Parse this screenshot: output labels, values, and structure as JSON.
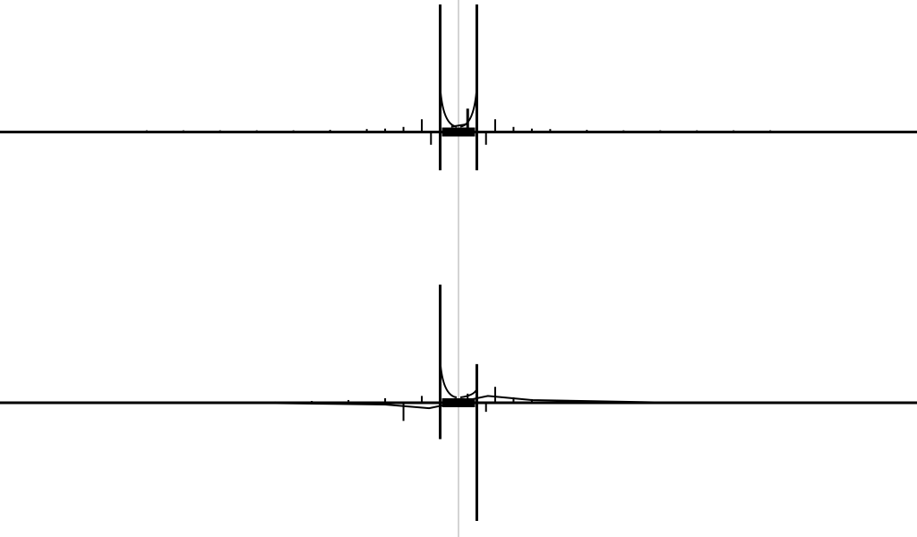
{
  "colors": {
    "background": "#ffffff",
    "trace": "#000000",
    "center_line": "#a8a8a8"
  },
  "chart_data": [
    {
      "type": "line",
      "title": "",
      "xlabel": "",
      "ylabel": "",
      "grid": false,
      "legend": "none",
      "xlim": [
        -12.5,
        12.5
      ],
      "ylim": [
        -1.0,
        3.0
      ],
      "center_x": 0,
      "baseline": 0,
      "spikes": [
        {
          "x": -8.5,
          "y": 0.04
        },
        {
          "x": -7.5,
          "y": 0.04
        },
        {
          "x": -6.5,
          "y": 0.04
        },
        {
          "x": -5.5,
          "y": 0.04
        },
        {
          "x": -4.5,
          "y": 0.04
        },
        {
          "x": -3.5,
          "y": 0.05
        },
        {
          "x": -2.5,
          "y": 0.07
        },
        {
          "x": -2.0,
          "y": 0.08
        },
        {
          "x": -1.5,
          "y": 0.12
        },
        {
          "x": -1.0,
          "y": 0.3
        },
        {
          "x": -0.75,
          "y": -0.3
        },
        {
          "x": -0.5,
          "y": 3.0
        },
        {
          "x": -0.5,
          "y": -0.9
        },
        {
          "x": 0.25,
          "y": 0.55
        },
        {
          "x": 0.5,
          "y": 3.0
        },
        {
          "x": 0.5,
          "y": -0.9
        },
        {
          "x": 0.75,
          "y": -0.3
        },
        {
          "x": 1.0,
          "y": 0.3
        },
        {
          "x": 1.5,
          "y": 0.12
        },
        {
          "x": 2.0,
          "y": 0.08
        },
        {
          "x": 2.5,
          "y": 0.07
        },
        {
          "x": 3.5,
          "y": 0.05
        },
        {
          "x": 4.5,
          "y": 0.04
        },
        {
          "x": 5.5,
          "y": 0.04
        },
        {
          "x": 6.5,
          "y": 0.04
        },
        {
          "x": 7.5,
          "y": 0.04
        },
        {
          "x": 8.5,
          "y": 0.04
        }
      ]
    },
    {
      "type": "line",
      "title": "",
      "xlabel": "",
      "ylabel": "",
      "grid": false,
      "legend": "none",
      "xlim": [
        -12.5,
        12.5
      ],
      "ylim": [
        -2.6,
        2.6
      ],
      "center_x": 0,
      "baseline": 0,
      "spikes": [
        {
          "x": -6.0,
          "y": 0.02
        },
        {
          "x": -5.0,
          "y": 0.03
        },
        {
          "x": -4.0,
          "y": 0.04
        },
        {
          "x": -3.0,
          "y": 0.06
        },
        {
          "x": -2.0,
          "y": 0.1
        },
        {
          "x": -1.5,
          "y": -0.4
        },
        {
          "x": -1.0,
          "y": 0.15
        },
        {
          "x": -0.5,
          "y": 2.6
        },
        {
          "x": -0.5,
          "y": -0.8
        },
        {
          "x": 0.25,
          "y": 0.2
        },
        {
          "x": 0.5,
          "y": 0.85
        },
        {
          "x": 0.5,
          "y": -2.6
        },
        {
          "x": 0.75,
          "y": -0.2
        },
        {
          "x": 1.0,
          "y": 0.35
        },
        {
          "x": 1.5,
          "y": 0.12
        },
        {
          "x": 2.0,
          "y": 0.08
        },
        {
          "x": 3.0,
          "y": 0.05
        },
        {
          "x": 4.0,
          "y": 0.04
        },
        {
          "x": 5.0,
          "y": 0.03
        },
        {
          "x": 6.0,
          "y": 0.02
        }
      ],
      "drift": [
        {
          "x": -6.0,
          "y": 0.0
        },
        {
          "x": -2.0,
          "y": -0.04
        },
        {
          "x": -0.8,
          "y": -0.12
        },
        {
          "x": 0.8,
          "y": 0.15
        },
        {
          "x": 2.0,
          "y": 0.06
        },
        {
          "x": 6.0,
          "y": 0.0
        }
      ]
    }
  ]
}
